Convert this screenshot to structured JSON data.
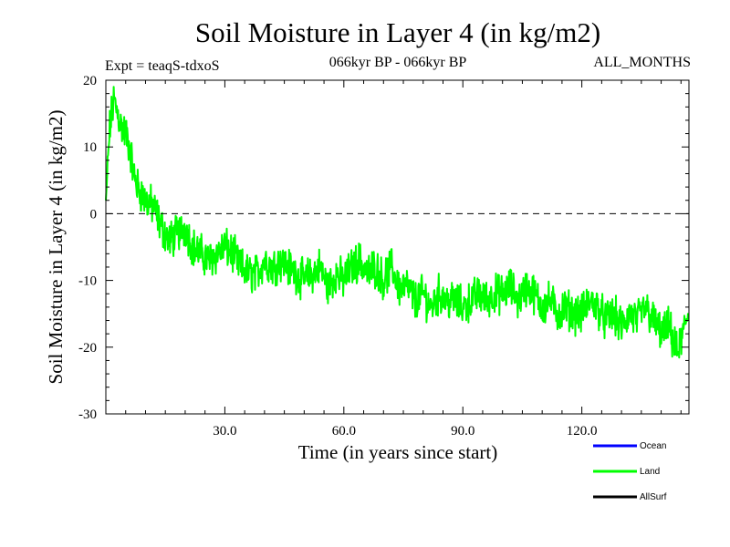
{
  "chart_data": {
    "type": "line",
    "title": "Soil Moisture in Layer 4 (in kg/m2)",
    "subtitle_left": "Expt = teaqS-tdxoS",
    "subtitle_center": "066kyr BP - 066kyr BP",
    "subtitle_right": "ALL_MONTHS",
    "xlabel": "Time (in years since start)",
    "ylabel": "Soil Moisture in Layer 4 (in kg/m2)",
    "xlim": [
      0,
      147
    ],
    "ylim": [
      -30,
      20
    ],
    "x_ticks": [
      30,
      60,
      90,
      120
    ],
    "x_tick_labels": [
      "30.0",
      "60.0",
      "90.0",
      "120.0"
    ],
    "y_ticks": [
      -30,
      -20,
      -10,
      0,
      10,
      20
    ],
    "y_tick_labels": [
      "-30",
      "-20",
      "-10",
      "0",
      "10",
      "20"
    ],
    "reference_line": {
      "y": 0,
      "style": "dashed"
    },
    "legend": [
      {
        "name": "Ocean",
        "color": "#0000ff"
      },
      {
        "name": "Land",
        "color": "#00ff00"
      },
      {
        "name": "AllSurf",
        "color": "#000000"
      }
    ],
    "series": [
      {
        "name": "Land",
        "color": "#00ff00",
        "x": [
          0,
          1,
          2,
          3,
          4,
          5,
          6,
          7,
          8,
          10,
          12,
          14,
          16,
          18,
          20,
          22,
          24,
          26,
          28,
          30,
          32,
          34,
          36,
          38,
          40,
          42,
          44,
          46,
          48,
          50,
          52,
          54,
          56,
          58,
          60,
          62,
          64,
          66,
          68,
          70,
          72,
          74,
          76,
          78,
          80,
          82,
          84,
          86,
          88,
          90,
          92,
          94,
          96,
          98,
          100,
          102,
          104,
          106,
          108,
          110,
          112,
          114,
          116,
          118,
          120,
          122,
          124,
          126,
          128,
          130,
          132,
          134,
          136,
          138,
          140,
          142,
          144,
          145,
          146,
          147
        ],
        "values": [
          2,
          13,
          17,
          15,
          13,
          12,
          10,
          6,
          4,
          2,
          1,
          -2,
          -4,
          -3,
          -2,
          -5,
          -6,
          -7,
          -6,
          -5,
          -6,
          -8,
          -9,
          -9,
          -7,
          -8,
          -7,
          -8,
          -9,
          -10,
          -9,
          -8,
          -11,
          -9,
          -10,
          -8,
          -7,
          -9,
          -8,
          -10,
          -8,
          -11,
          -11,
          -13,
          -12,
          -14,
          -12,
          -13,
          -13,
          -14,
          -13,
          -12,
          -13,
          -12,
          -12,
          -11,
          -13,
          -11,
          -12,
          -14,
          -13,
          -15,
          -14,
          -15,
          -15,
          -13,
          -14,
          -16,
          -15,
          -17,
          -15,
          -16,
          -14,
          -16,
          -18,
          -17,
          -21,
          -19,
          -17,
          -14
        ]
      }
    ]
  }
}
